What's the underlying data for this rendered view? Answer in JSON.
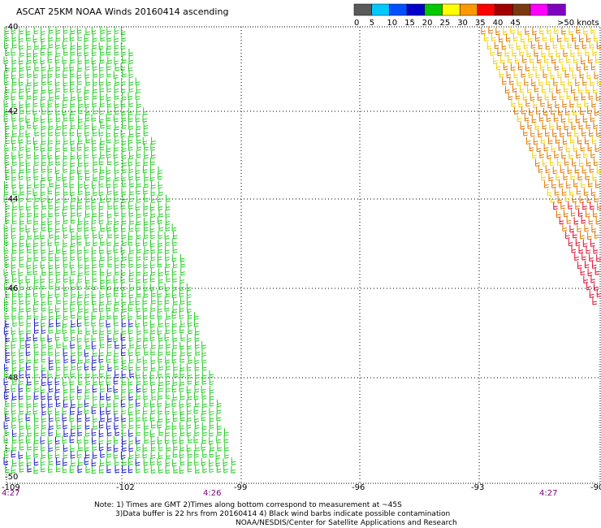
{
  "title": "ASCAT 25KM NOAA Winds 20160414 ascending",
  "legend": {
    "unit_label": ">50 knots",
    "bins": [
      {
        "label": "0",
        "color": "#5a5a5a"
      },
      {
        "label": "5",
        "color": "#00c8ff"
      },
      {
        "label": "10",
        "color": "#0050ff"
      },
      {
        "label": "15",
        "color": "#0000c8"
      },
      {
        "label": "20",
        "color": "#00c800"
      },
      {
        "label": "25",
        "color": "#ffff00"
      },
      {
        "label": "30",
        "color": "#ff9900"
      },
      {
        "label": "35",
        "color": "#ff0000"
      },
      {
        "label": "40",
        "color": "#a00000"
      },
      {
        "label": "45",
        "color": "#7a3a10"
      },
      {
        "label": "",
        "color": "#ff00ff"
      },
      {
        "label": "",
        "color": "#8000c0"
      }
    ]
  },
  "map": {
    "lon_labels": [
      "-99",
      "-96",
      "-93",
      "-90"
    ],
    "lon_label_partial": [
      "-102"
    ],
    "lat_labels": [
      "-40",
      "-42",
      "-44",
      "-46",
      "-48",
      "-50"
    ],
    "time_labels": [
      "4:27",
      "4:26",
      "4:27"
    ],
    "left_corner_lon": "-109"
  },
  "notes": {
    "line1": "Note: 1) Times are GMT 2)Times along bottom correspond to measurement at ~45S",
    "line2": "3)Data buffer is 22 hrs from 20160414 4) Black wind barbs indicate possible contamination",
    "line3": "NOAA/NESDIS/Center for Satellite Applications and Research"
  },
  "colors": {
    "grid": "#000000",
    "barb_green": "#22cc22",
    "barb_blue": "#1a1acc",
    "barb_yellow": "#f2d000",
    "barb_orange": "#e07800",
    "barb_red": "#e01030",
    "time_label": "#800080"
  }
}
